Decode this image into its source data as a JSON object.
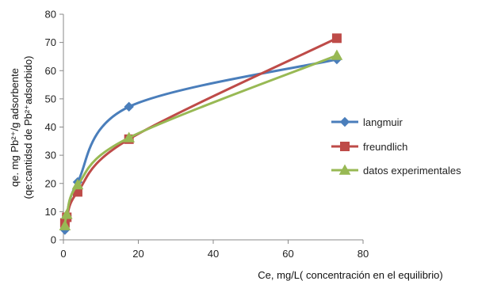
{
  "chart_data": {
    "type": "scatter",
    "xlabel": "Ce, mg/L( concentración en el equilibrio)",
    "ylabel_line1": "qe. mg Pb²⁺/g adsorbente",
    "ylabel_line2": "(qe:cantidsd de Pb²⁺adsorbido)",
    "xlim": [
      0,
      80
    ],
    "ylim": [
      0,
      80
    ],
    "xticks": [
      "0",
      "20",
      "40",
      "60",
      "80"
    ],
    "yticks": [
      "0",
      "10",
      "20",
      "30",
      "40",
      "50",
      "60",
      "70",
      "80"
    ],
    "grid": false,
    "legend_position": "right",
    "series": [
      {
        "name": "langmuir",
        "color": "#4a7ebb",
        "marker": "diamond",
        "points": [
          [
            0.4,
            3.5
          ],
          [
            0.9,
            8.5
          ],
          [
            3.8,
            20.5
          ],
          [
            17.5,
            47.2
          ],
          [
            73.0,
            64.0
          ]
        ]
      },
      {
        "name": "freundlich",
        "color": "#be4b48",
        "marker": "square",
        "points": [
          [
            0.4,
            6.0
          ],
          [
            0.9,
            8.0
          ],
          [
            3.8,
            17.0
          ],
          [
            17.5,
            35.7
          ],
          [
            73.0,
            71.5
          ]
        ]
      },
      {
        "name": "datos experimentales",
        "color": "#98b954",
        "marker": "triangle",
        "points": [
          [
            0.4,
            5.0
          ],
          [
            0.9,
            9.0
          ],
          [
            3.8,
            19.5
          ],
          [
            17.5,
            36.2
          ],
          [
            73.0,
            65.4
          ]
        ]
      }
    ]
  }
}
